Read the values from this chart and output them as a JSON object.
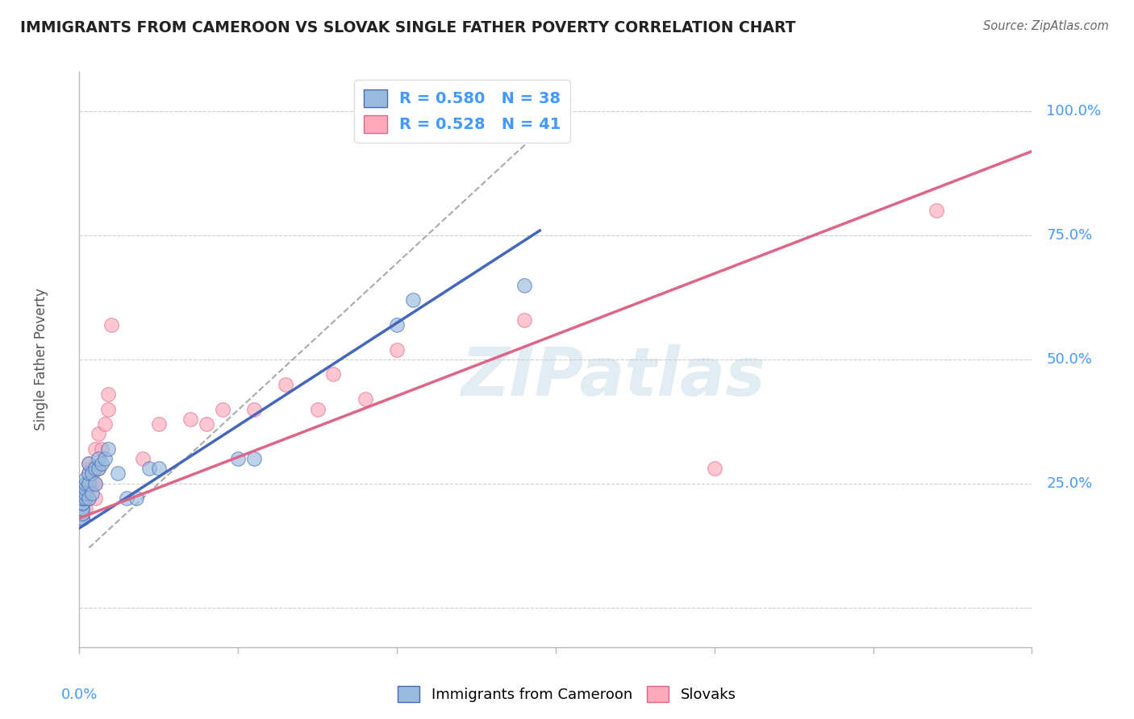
{
  "title": "IMMIGRANTS FROM CAMEROON VS SLOVAK SINGLE FATHER POVERTY CORRELATION CHART",
  "source": "Source: ZipAtlas.com",
  "ylabel": "Single Father Poverty",
  "xlim": [
    0.0,
    0.3
  ],
  "ylim": [
    -0.08,
    1.08
  ],
  "watermark": "ZIPatlas",
  "legend_r1": "R = 0.580",
  "legend_n1": "N = 38",
  "legend_r2": "R = 0.528",
  "legend_n2": "N = 41",
  "legend_label1": "Immigrants from Cameroon",
  "legend_label2": "Slovaks",
  "blue_color": "#99BBDD",
  "pink_color": "#FFAABB",
  "blue_line_color": "#4466BB",
  "pink_line_color": "#DD6688",
  "blue_scatter_x": [
    0.001,
    0.001,
    0.001,
    0.001,
    0.001,
    0.001,
    0.001,
    0.001,
    0.001,
    0.001,
    0.002,
    0.002,
    0.002,
    0.002,
    0.002,
    0.003,
    0.003,
    0.003,
    0.003,
    0.004,
    0.004,
    0.005,
    0.005,
    0.006,
    0.006,
    0.007,
    0.008,
    0.009,
    0.012,
    0.015,
    0.018,
    0.022,
    0.025,
    0.05,
    0.055,
    0.1,
    0.105,
    0.14
  ],
  "blue_scatter_y": [
    0.18,
    0.18,
    0.19,
    0.2,
    0.2,
    0.21,
    0.21,
    0.22,
    0.22,
    0.23,
    0.22,
    0.23,
    0.24,
    0.25,
    0.26,
    0.22,
    0.25,
    0.27,
    0.29,
    0.23,
    0.27,
    0.25,
    0.28,
    0.28,
    0.3,
    0.29,
    0.3,
    0.32,
    0.27,
    0.22,
    0.22,
    0.28,
    0.28,
    0.3,
    0.3,
    0.57,
    0.62,
    0.65
  ],
  "pink_scatter_x": [
    0.001,
    0.001,
    0.001,
    0.001,
    0.001,
    0.002,
    0.002,
    0.002,
    0.002,
    0.002,
    0.003,
    0.003,
    0.003,
    0.003,
    0.004,
    0.004,
    0.005,
    0.005,
    0.005,
    0.005,
    0.006,
    0.006,
    0.007,
    0.008,
    0.009,
    0.009,
    0.01,
    0.02,
    0.025,
    0.035,
    0.04,
    0.045,
    0.055,
    0.065,
    0.075,
    0.08,
    0.09,
    0.1,
    0.14,
    0.2,
    0.27
  ],
  "pink_scatter_y": [
    0.18,
    0.19,
    0.2,
    0.21,
    0.22,
    0.2,
    0.22,
    0.23,
    0.24,
    0.25,
    0.22,
    0.25,
    0.27,
    0.29,
    0.25,
    0.28,
    0.22,
    0.25,
    0.28,
    0.32,
    0.28,
    0.35,
    0.32,
    0.37,
    0.4,
    0.43,
    0.57,
    0.3,
    0.37,
    0.38,
    0.37,
    0.4,
    0.4,
    0.45,
    0.4,
    0.47,
    0.42,
    0.52,
    0.58,
    0.28,
    0.8
  ],
  "blue_line_x": [
    0.0,
    0.145
  ],
  "blue_line_y": [
    0.16,
    0.76
  ],
  "pink_line_x": [
    0.0,
    0.3
  ],
  "pink_line_y": [
    0.18,
    0.92
  ],
  "diag_line_x": [
    0.003,
    0.155
  ],
  "diag_line_y": [
    0.12,
    1.02
  ],
  "y_ticks": [
    0.0,
    0.25,
    0.5,
    0.75,
    1.0
  ],
  "y_tick_labels": [
    "",
    "25.0%",
    "50.0%",
    "75.0%",
    "100.0%"
  ],
  "x_ticks": [
    0.0,
    0.05,
    0.1,
    0.15,
    0.2,
    0.25,
    0.3
  ]
}
